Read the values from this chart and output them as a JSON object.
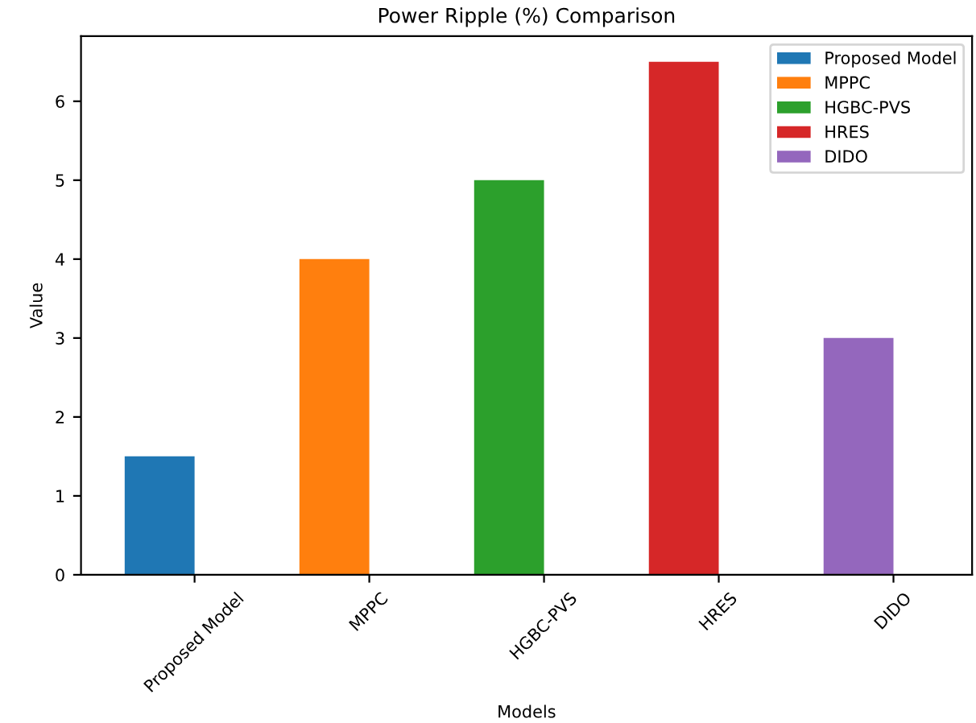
{
  "chart_data": {
    "type": "bar",
    "title": "Power Ripple (%) Comparison",
    "xlabel": "Models",
    "ylabel": "Value",
    "categories": [
      "Proposed Model",
      "MPPC",
      "HGBC-PVS",
      "HRES",
      "DIDO"
    ],
    "series": [
      {
        "name": "Proposed Model",
        "color": "#1f77b4",
        "values": [
          1.5,
          null,
          null,
          null,
          null
        ]
      },
      {
        "name": "MPPC",
        "color": "#ff7f0e",
        "values": [
          null,
          4,
          null,
          null,
          null
        ]
      },
      {
        "name": "HGBC-PVS",
        "color": "#2ca02c",
        "values": [
          null,
          null,
          5,
          null,
          null
        ]
      },
      {
        "name": "HRES",
        "color": "#d62728",
        "values": [
          null,
          null,
          null,
          6.5,
          null
        ]
      },
      {
        "name": "DIDO",
        "color": "#9467bd",
        "values": [
          null,
          null,
          null,
          null,
          3
        ]
      }
    ],
    "ylim": [
      0,
      6.825
    ],
    "yticks": [
      0,
      1,
      2,
      3,
      4,
      5,
      6
    ],
    "grid": false,
    "legend": "top right"
  }
}
